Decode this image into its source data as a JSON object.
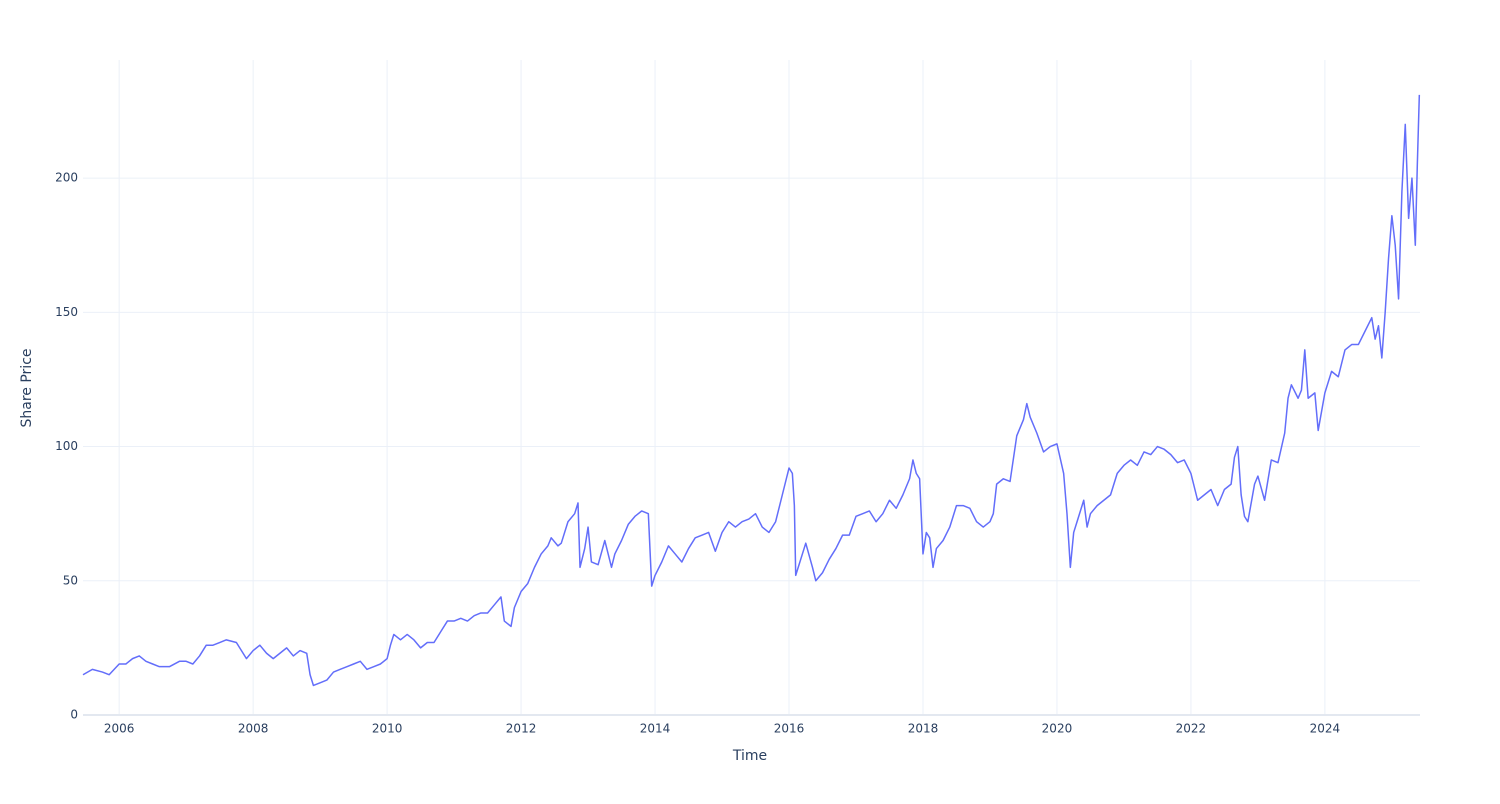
{
  "chart_data": {
    "type": "line",
    "xlabel": "Time",
    "ylabel": "Share Price",
    "xlim": [
      2005.46,
      2025.42
    ],
    "xticks": [
      2006,
      2008,
      2010,
      2012,
      2014,
      2016,
      2018,
      2020,
      2022,
      2024
    ],
    "ylim": [
      0,
      244
    ],
    "yticks": [
      0,
      50,
      100,
      150,
      200
    ],
    "grid": true,
    "x": [
      2005.46,
      2005.6,
      2005.75,
      2005.85,
      2006.0,
      2006.1,
      2006.2,
      2006.3,
      2006.4,
      2006.5,
      2006.6,
      2006.75,
      2006.9,
      2007.0,
      2007.1,
      2007.2,
      2007.3,
      2007.4,
      2007.5,
      2007.6,
      2007.75,
      2007.8,
      2007.9,
      2008.0,
      2008.1,
      2008.2,
      2008.3,
      2008.4,
      2008.5,
      2008.6,
      2008.7,
      2008.8,
      2008.85,
      2008.9,
      2009.0,
      2009.1,
      2009.2,
      2009.3,
      2009.4,
      2009.5,
      2009.6,
      2009.7,
      2009.8,
      2009.9,
      2010.0,
      2010.05,
      2010.1,
      2010.2,
      2010.3,
      2010.4,
      2010.5,
      2010.6,
      2010.7,
      2010.8,
      2010.9,
      2011.0,
      2011.1,
      2011.2,
      2011.3,
      2011.4,
      2011.5,
      2011.6,
      2011.7,
      2011.75,
      2011.85,
      2011.9,
      2012.0,
      2012.1,
      2012.2,
      2012.3,
      2012.4,
      2012.45,
      2012.55,
      2012.6,
      2012.7,
      2012.8,
      2012.85,
      2012.88,
      2012.95,
      2013.0,
      2013.05,
      2013.15,
      2013.25,
      2013.35,
      2013.4,
      2013.5,
      2013.6,
      2013.7,
      2013.8,
      2013.9,
      2013.95,
      2014.0,
      2014.1,
      2014.2,
      2014.3,
      2014.4,
      2014.5,
      2014.6,
      2014.7,
      2014.8,
      2014.9,
      2015.0,
      2015.1,
      2015.2,
      2015.3,
      2015.4,
      2015.5,
      2015.6,
      2015.7,
      2015.8,
      2015.9,
      2016.0,
      2016.05,
      2016.08,
      2016.1,
      2016.2,
      2016.25,
      2016.35,
      2016.4,
      2016.5,
      2016.6,
      2016.7,
      2016.8,
      2016.9,
      2017.0,
      2017.1,
      2017.2,
      2017.3,
      2017.4,
      2017.5,
      2017.6,
      2017.7,
      2017.8,
      2017.85,
      2017.9,
      2017.95,
      2018.0,
      2018.05,
      2018.1,
      2018.15,
      2018.2,
      2018.3,
      2018.4,
      2018.5,
      2018.6,
      2018.7,
      2018.8,
      2018.9,
      2019.0,
      2019.05,
      2019.1,
      2019.2,
      2019.3,
      2019.4,
      2019.5,
      2019.55,
      2019.6,
      2019.7,
      2019.8,
      2019.9,
      2020.0,
      2020.1,
      2020.15,
      2020.2,
      2020.25,
      2020.3,
      2020.4,
      2020.45,
      2020.5,
      2020.6,
      2020.7,
      2020.8,
      2020.9,
      2021.0,
      2021.1,
      2021.2,
      2021.3,
      2021.4,
      2021.5,
      2021.6,
      2021.7,
      2021.8,
      2021.9,
      2022.0,
      2022.1,
      2022.2,
      2022.3,
      2022.4,
      2022.5,
      2022.6,
      2022.65,
      2022.7,
      2022.75,
      2022.8,
      2022.85,
      2022.95,
      2023.0,
      2023.1,
      2023.2,
      2023.3,
      2023.4,
      2023.45,
      2023.5,
      2023.6,
      2023.65,
      2023.7,
      2023.75,
      2023.85,
      2023.9,
      2024.0,
      2024.1,
      2024.2,
      2024.3,
      2024.4,
      2024.5,
      2024.6,
      2024.7,
      2024.75,
      2024.8,
      2024.85,
      2024.9,
      2024.95,
      2025.0,
      2025.05,
      2025.1,
      2025.15,
      2025.2,
      2025.25,
      2025.3,
      2025.35,
      2025.38,
      2025.41
    ],
    "series": [
      {
        "color": "#636efa",
        "values": [
          15,
          17,
          16,
          15,
          19,
          19,
          21,
          22,
          20,
          19,
          18,
          18,
          20,
          20,
          19,
          22,
          26,
          26,
          27,
          28,
          27,
          25,
          21,
          24,
          26,
          23,
          21,
          23,
          25,
          22,
          24,
          23,
          15,
          11,
          12,
          13,
          16,
          17,
          18,
          19,
          20,
          17,
          18,
          19,
          21,
          26,
          30,
          28,
          30,
          28,
          25,
          27,
          27,
          31,
          35,
          35,
          36,
          35,
          37,
          38,
          38,
          41,
          44,
          35,
          33,
          40,
          46,
          49,
          55,
          60,
          63,
          66,
          63,
          64,
          72,
          75,
          79,
          55,
          62,
          70,
          57,
          56,
          65,
          55,
          60,
          65,
          71,
          74,
          76,
          75,
          48,
          52,
          57,
          63,
          60,
          57,
          62,
          66,
          67,
          68,
          61,
          68,
          72,
          70,
          72,
          73,
          75,
          70,
          68,
          72,
          82,
          92,
          90,
          78,
          52,
          60,
          64,
          55,
          50,
          53,
          58,
          62,
          67,
          67,
          74,
          75,
          76,
          72,
          75,
          80,
          77,
          82,
          88,
          95,
          90,
          88,
          60,
          68,
          66,
          55,
          62,
          65,
          70,
          78,
          78,
          77,
          72,
          70,
          72,
          75,
          86,
          88,
          87,
          104,
          110,
          116,
          111,
          105,
          98,
          100,
          101,
          90,
          75,
          55,
          68,
          72,
          80,
          70,
          75,
          78,
          80,
          82,
          90,
          93,
          95,
          93,
          98,
          97,
          100,
          99,
          97,
          94,
          95,
          90,
          80,
          82,
          84,
          78,
          84,
          86,
          96,
          100,
          82,
          74,
          72,
          86,
          89,
          80,
          95,
          94,
          105,
          118,
          123,
          118,
          121,
          136,
          118,
          120,
          106,
          120,
          128,
          126,
          136,
          138,
          138,
          143,
          148,
          140,
          145,
          133,
          150,
          170,
          186,
          175,
          155,
          195,
          220,
          185,
          200,
          175,
          205,
          231
        ]
      }
    ]
  }
}
